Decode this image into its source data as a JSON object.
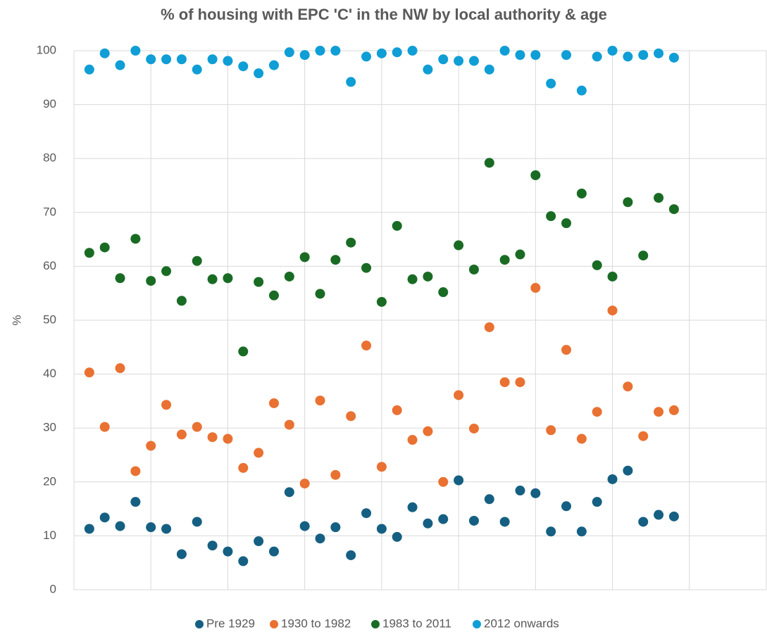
{
  "chart_data": {
    "type": "scatter",
    "title": "% of housing with EPC 'C' in the NW by local authority & age",
    "y_label": "%",
    "x": [
      1,
      2,
      3,
      4,
      5,
      6,
      7,
      8,
      9,
      10,
      11,
      12,
      13,
      14,
      15,
      16,
      17,
      18,
      19,
      20,
      21,
      22,
      23,
      24,
      25,
      26,
      27,
      28,
      29,
      30,
      31,
      32,
      33,
      34,
      35,
      36,
      37,
      38,
      39
    ],
    "series": [
      {
        "name": "Pre 1929",
        "color": "#156082",
        "values": [
          11.3,
          13.4,
          11.8,
          16.3,
          11.6,
          11.3,
          6.6,
          12.6,
          8.2,
          7.1,
          5.3,
          9.0,
          7.1,
          18.1,
          11.8,
          9.5,
          11.6,
          6.4,
          14.2,
          11.3,
          9.8,
          15.3,
          12.3,
          13.1,
          20.3,
          12.8,
          16.8,
          12.6,
          18.4,
          17.9,
          10.8,
          15.5,
          10.8,
          16.3,
          20.5,
          22.1,
          12.6,
          13.9,
          13.6
        ]
      },
      {
        "name": "1930 to 1982",
        "color": "#e97132",
        "values": [
          40.3,
          30.2,
          41.1,
          22.0,
          26.7,
          34.3,
          28.8,
          30.2,
          28.3,
          28.0,
          22.6,
          25.4,
          34.6,
          30.6,
          19.7,
          35.1,
          21.3,
          32.2,
          45.3,
          22.8,
          33.3,
          27.8,
          29.4,
          20.0,
          36.1,
          29.9,
          48.7,
          38.5,
          38.5,
          56.0,
          29.6,
          44.5,
          28.0,
          33.0,
          51.8,
          37.7,
          28.5,
          33.0,
          33.3
        ]
      },
      {
        "name": "1983 to 2011",
        "color": "#196b24",
        "values": [
          62.5,
          63.5,
          57.8,
          65.1,
          57.3,
          59.1,
          53.6,
          61.0,
          57.6,
          57.8,
          44.2,
          57.1,
          54.6,
          58.1,
          61.7,
          54.9,
          61.2,
          64.4,
          59.7,
          53.4,
          67.5,
          57.6,
          58.1,
          55.2,
          63.9,
          59.4,
          79.2,
          61.2,
          62.2,
          76.9,
          69.3,
          68.0,
          73.5,
          60.2,
          58.1,
          71.9,
          62.0,
          72.7,
          70.6
        ]
      },
      {
        "name": "2012 onwards",
        "color": "#0f9ed5",
        "values": [
          96.5,
          99.5,
          97.3,
          100,
          98.4,
          98.4,
          98.4,
          96.5,
          98.4,
          98.1,
          97.1,
          95.8,
          97.3,
          99.7,
          99.2,
          100,
          100,
          94.2,
          98.9,
          99.5,
          99.7,
          100,
          96.5,
          98.4,
          98.1,
          98.1,
          96.5,
          100,
          99.2,
          99.2,
          93.9,
          99.2,
          92.6,
          98.9,
          100,
          98.9,
          99.2,
          99.5,
          98.7
        ]
      }
    ],
    "xlim": [
      0,
      45
    ],
    "xticks": [
      0,
      5,
      10,
      15,
      20,
      25,
      30,
      35,
      40,
      45
    ],
    "ylim": [
      0,
      100
    ],
    "yticks": [
      0,
      10,
      20,
      30,
      40,
      50,
      60,
      70,
      80,
      90,
      100
    ],
    "grid": true,
    "legend": "bottom"
  }
}
